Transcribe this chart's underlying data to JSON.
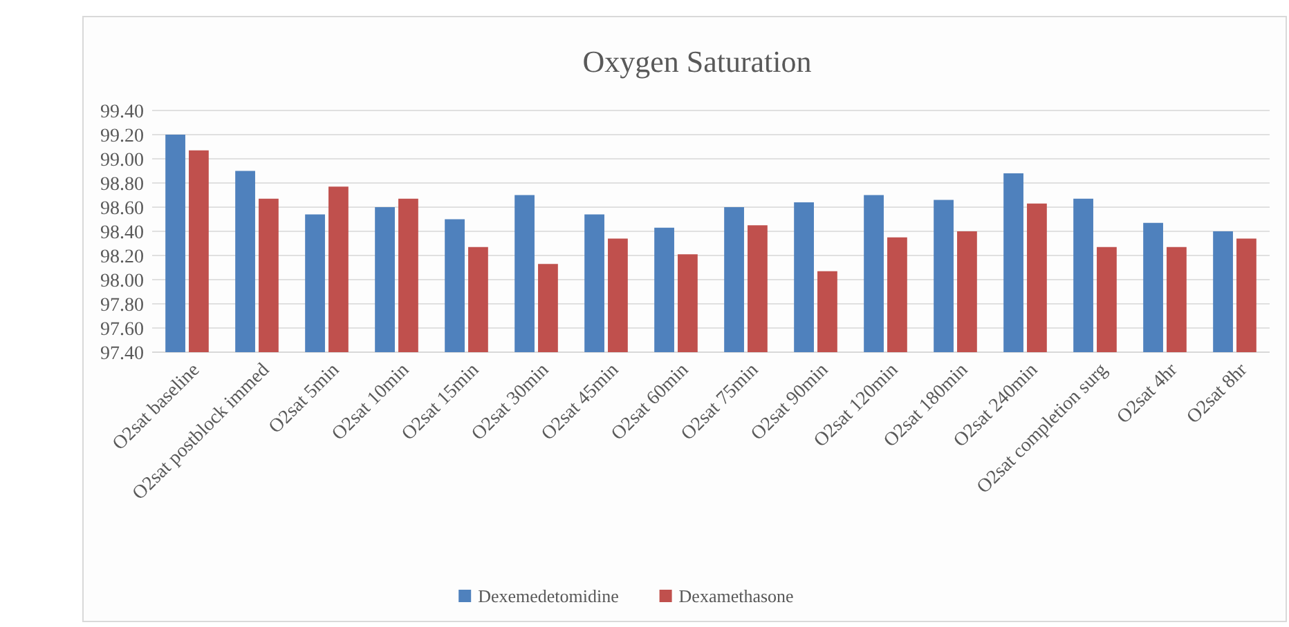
{
  "chart_data": {
    "type": "bar",
    "title": "Oxygen Saturation",
    "categories": [
      "O2sat baseline",
      "O2sat postblock immed",
      "O2sat 5min",
      "O2sat 10min",
      "O2sat 15min",
      "O2sat 30min",
      "O2sat 45min",
      "O2sat 60min",
      "O2sat 75min",
      "O2sat 90min",
      "O2sat 120min",
      "O2sat 180min",
      "O2sat 240min",
      "O2sat completion surg",
      "O2sat 4hr",
      "O2sat 8hr"
    ],
    "series": [
      {
        "name": "Dexemedetomidine",
        "color": "#4f81bd",
        "values": [
          99.2,
          98.9,
          98.54,
          98.6,
          98.5,
          98.7,
          98.54,
          98.43,
          98.6,
          98.64,
          98.7,
          98.66,
          98.88,
          98.67,
          98.47,
          98.4
        ]
      },
      {
        "name": "Dexamethasone",
        "color": "#c0504d",
        "values": [
          99.07,
          98.67,
          98.77,
          98.67,
          98.27,
          98.13,
          98.34,
          98.21,
          98.45,
          98.07,
          98.35,
          98.4,
          98.63,
          98.27,
          98.27,
          98.34
        ]
      }
    ],
    "ylim": [
      97.4,
      99.4
    ],
    "yticks": [
      {
        "value": 97.4,
        "label": "97.40"
      },
      {
        "value": 97.6,
        "label": "97.60"
      },
      {
        "value": 97.8,
        "label": "97.80"
      },
      {
        "value": 98.0,
        "label": "98.00"
      },
      {
        "value": 98.2,
        "label": "98.20"
      },
      {
        "value": 98.4,
        "label": "98.40"
      },
      {
        "value": 98.6,
        "label": "98.60"
      },
      {
        "value": 98.8,
        "label": "98.80"
      },
      {
        "value": 99.0,
        "label": "99.00"
      },
      {
        "value": 99.2,
        "label": "99.20"
      },
      {
        "value": 99.4,
        "label": "99.40"
      }
    ],
    "grid": "y",
    "legend": "bottom"
  }
}
